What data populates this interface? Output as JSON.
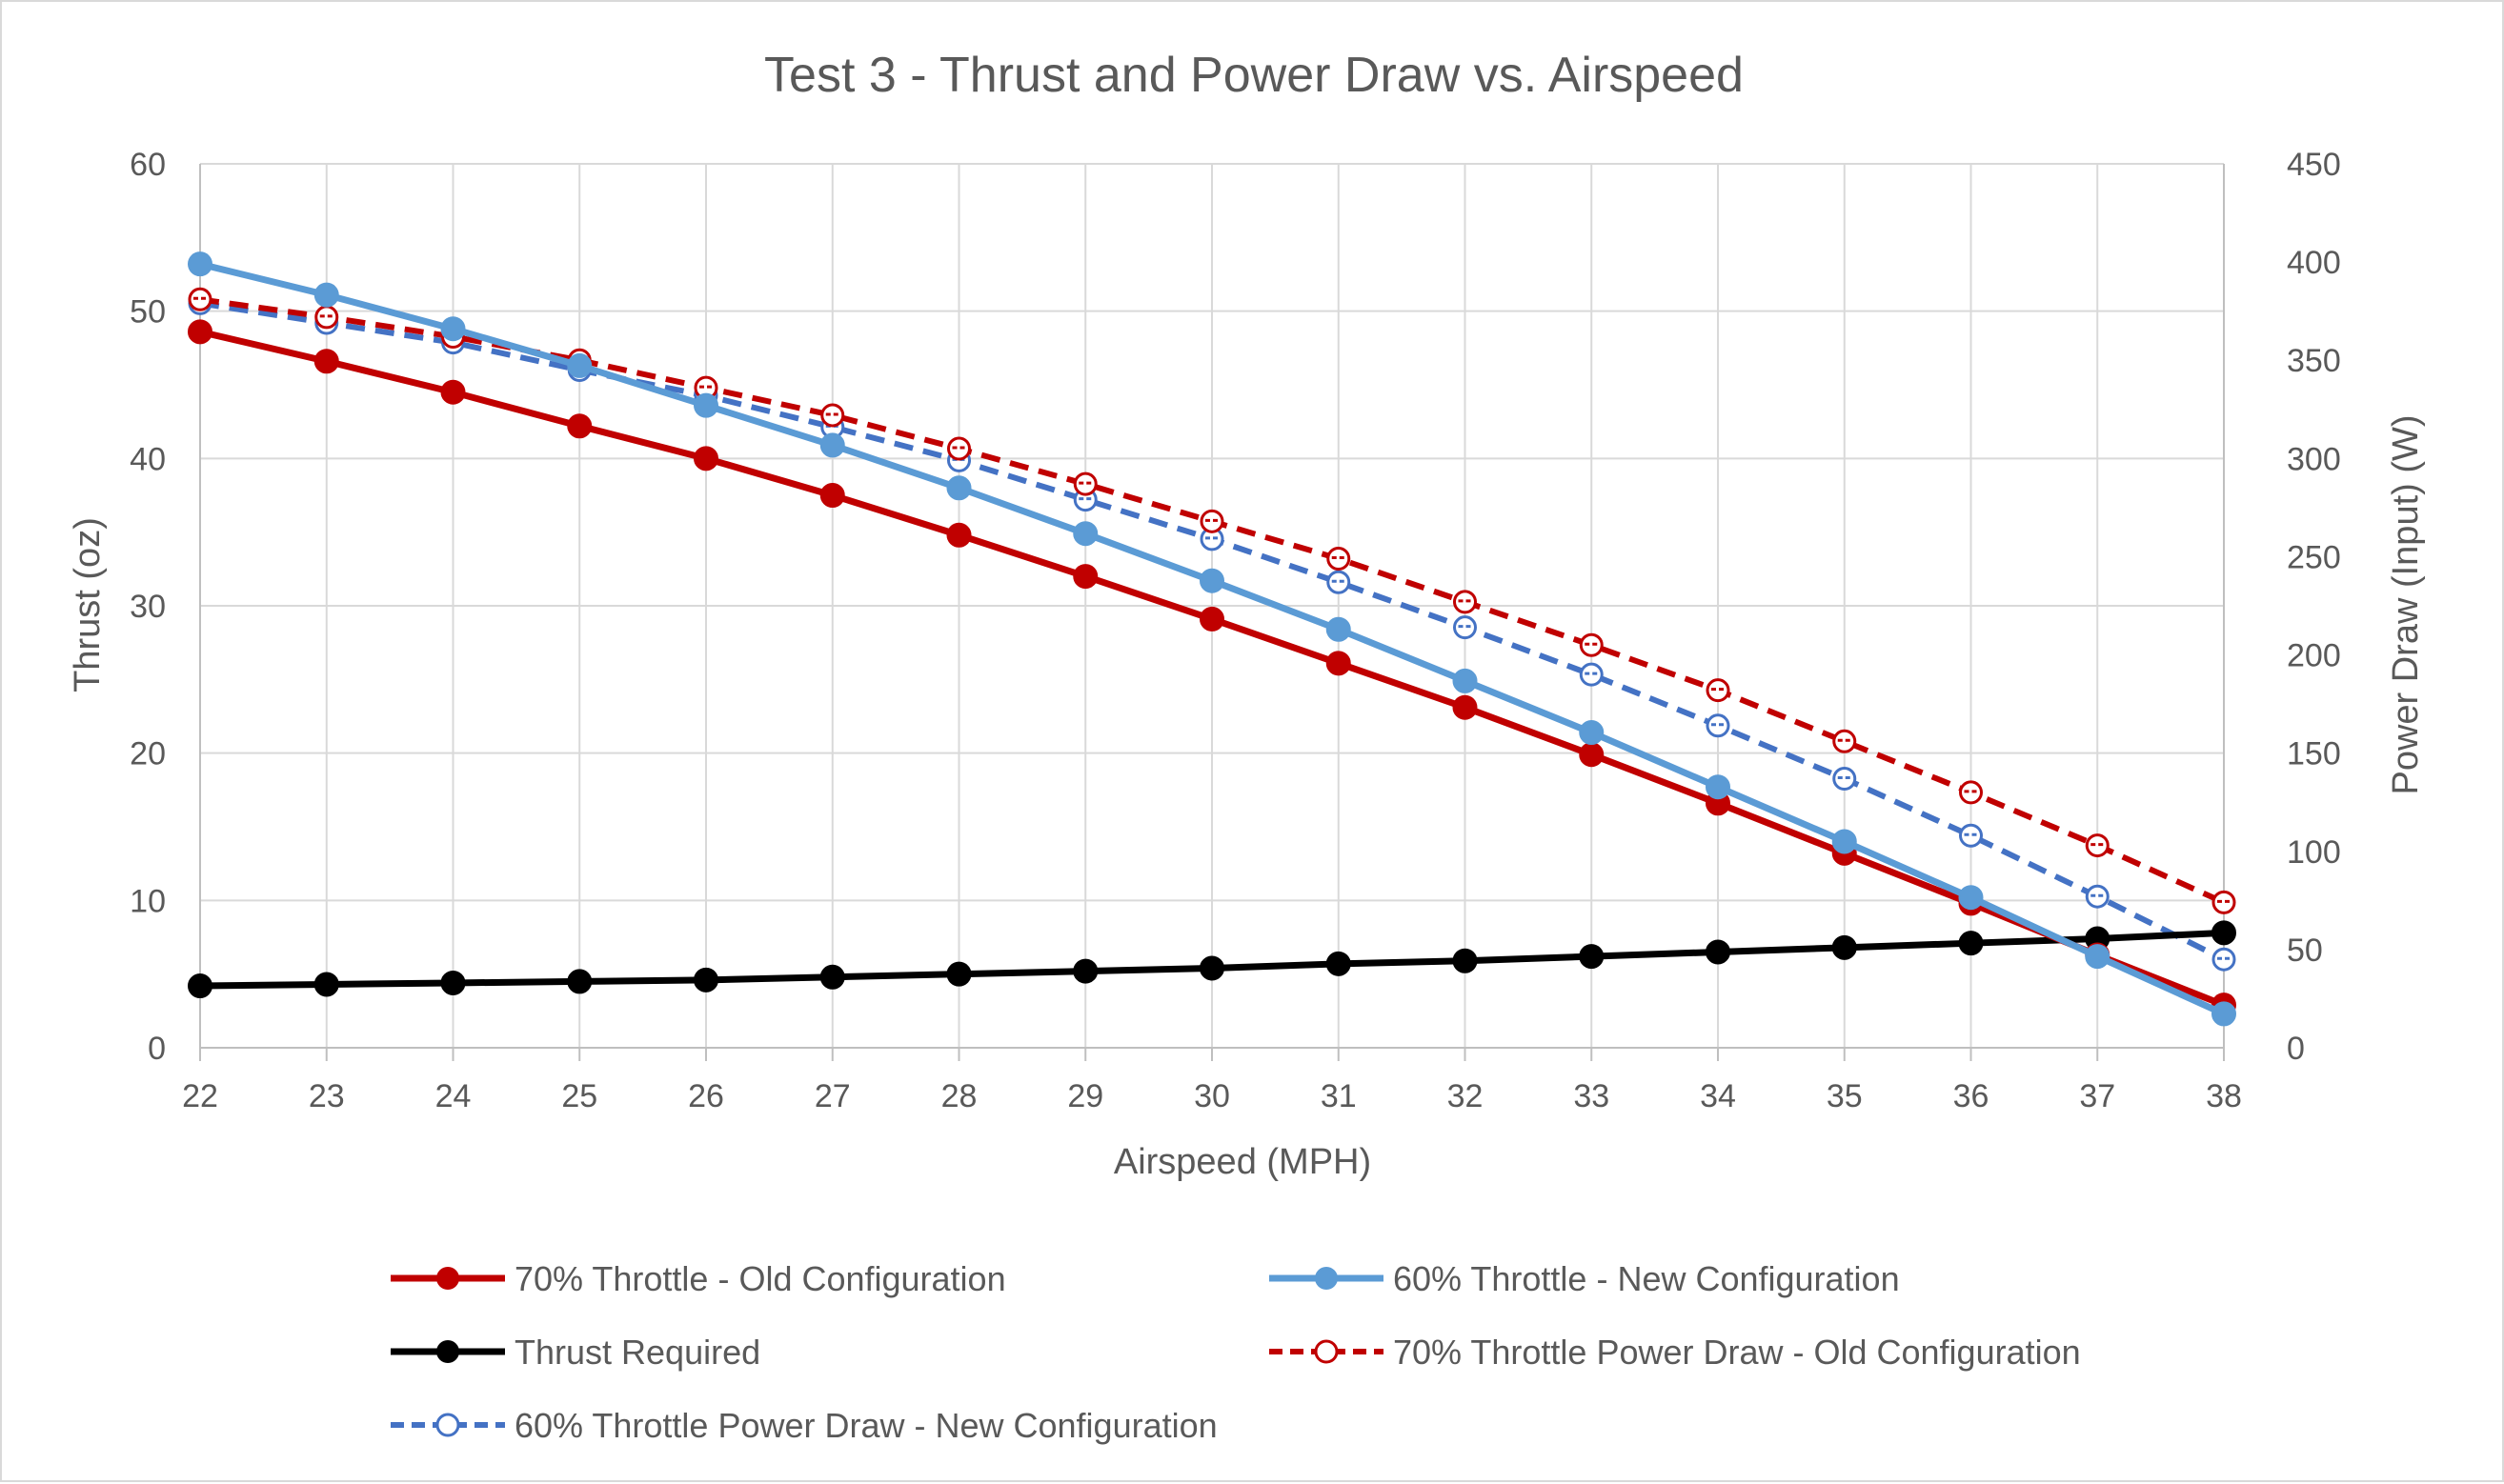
{
  "chart_data": {
    "type": "line",
    "title": "Test 3 - Thrust and Power Draw vs. Airspeed",
    "xlabel": "Airspeed (MPH)",
    "ylabel": "Thrust (oz)",
    "y2label": "Power Draw (Input) (W)",
    "x": [
      22,
      23,
      24,
      25,
      26,
      27,
      28,
      29,
      30,
      31,
      32,
      33,
      34,
      35,
      36,
      37,
      38
    ],
    "xlim": [
      22,
      38
    ],
    "ylim": [
      0,
      60
    ],
    "y2lim": [
      0,
      450
    ],
    "yticks": [
      0,
      10,
      20,
      30,
      40,
      50,
      60
    ],
    "y2ticks": [
      0,
      50,
      100,
      150,
      200,
      250,
      300,
      350,
      400,
      450
    ],
    "grid": true,
    "legend_position": "bottom",
    "series": [
      {
        "name": "70% Throttle - Old Configuration",
        "axis": "left",
        "style": "solid",
        "marker": "filled",
        "color": "#C00000",
        "values": [
          48.6,
          46.6,
          44.5,
          42.2,
          40.0,
          37.5,
          34.8,
          32.0,
          29.1,
          26.1,
          23.1,
          19.9,
          16.6,
          13.2,
          9.8,
          6.3,
          2.9
        ]
      },
      {
        "name": "60% Throttle - New Configuration",
        "axis": "left",
        "style": "solid",
        "marker": "filled",
        "color": "#5B9BD5",
        "values": [
          53.2,
          51.1,
          48.8,
          46.3,
          43.6,
          40.9,
          38.0,
          34.9,
          31.7,
          28.4,
          24.9,
          21.4,
          17.7,
          14.0,
          10.2,
          6.2,
          2.3
        ]
      },
      {
        "name": "Thrust Required",
        "axis": "left",
        "style": "solid",
        "marker": "filled",
        "color": "#000000",
        "values": [
          4.2,
          4.3,
          4.4,
          4.5,
          4.6,
          4.8,
          5.0,
          5.2,
          5.4,
          5.7,
          5.9,
          6.2,
          6.5,
          6.8,
          7.1,
          7.4,
          7.8
        ]
      },
      {
        "name": "70% Throttle Power Draw - Old Configuration",
        "axis": "right",
        "style": "dashed",
        "marker": "hollow",
        "color": "#C00000",
        "values": [
          381,
          372,
          362,
          350,
          336,
          322,
          305,
          287,
          268,
          249,
          227,
          205,
          182,
          156,
          130,
          103,
          74
        ]
      },
      {
        "name": "60% Throttle Power Draw - New Configuration",
        "axis": "right",
        "style": "dashed",
        "marker": "hollow",
        "color": "#4472C4",
        "values": [
          379,
          369,
          359,
          345,
          332,
          316,
          299,
          279,
          259,
          237,
          214,
          190,
          164,
          137,
          108,
          77,
          45
        ]
      }
    ]
  }
}
